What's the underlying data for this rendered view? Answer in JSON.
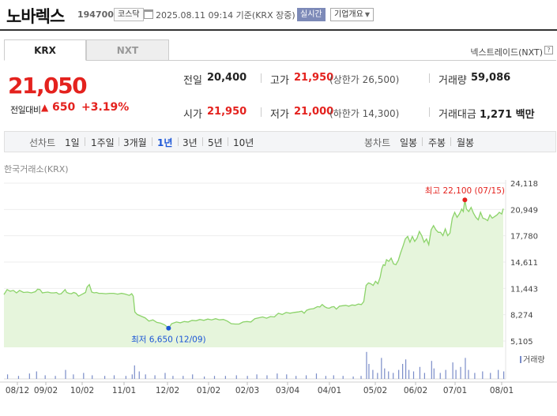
{
  "header": {
    "company_name": "노바렉스",
    "code": "194700",
    "market": "코스닥",
    "as_of": "2025.08.11 09:14 기준(KRX 장중)",
    "realtime_badge": "실시간",
    "company_info": "기업개요",
    "calendar_icon": "calendar-icon",
    "caret_icon": "chevron-down-icon"
  },
  "tabs": [
    {
      "label": "KRX",
      "active": true
    },
    {
      "label": "NXT",
      "active": false
    }
  ],
  "nxt_link": "넥스트레이드(NXT)",
  "help_icon": "question-icon",
  "quote": {
    "price": "21,050",
    "change_label": "전일대비",
    "change_arrow": "▲",
    "change": "650",
    "change_pct": "+3.19%"
  },
  "stats": {
    "prev_close_label": "전일",
    "prev_close": "20,400",
    "high_label": "고가",
    "high": "21,950",
    "upper_limit": "(상한가 26,500)",
    "volume_label": "거래량",
    "volume": "59,086",
    "open_label": "시가",
    "open": "21,950",
    "low_label": "저가",
    "low": "21,000",
    "lower_limit": "(하한가 14,300)",
    "amount_label": "거래대금",
    "amount": "1,271 백만"
  },
  "period_bar": {
    "line_label": "선차트",
    "line_periods": [
      "1일",
      "1주일",
      "3개월",
      "1년",
      "3년",
      "5년",
      "10년"
    ],
    "selected": "1년",
    "candle_label": "봉차트",
    "candle_periods": [
      "일봉",
      "주봉",
      "월봉"
    ]
  },
  "source_label": "한국거래소(KRX)",
  "colors": {
    "up": "#e4221e",
    "accent": "#1c56d6",
    "line": "#8cd36a",
    "fill": "#e6f5dc",
    "volume": "#7a8cc8"
  },
  "chart_data": {
    "type": "area",
    "x_tick_labels": [
      "08/12",
      "09/02",
      "10/02",
      "11/01",
      "12/02",
      "01/02",
      "02/03",
      "03/04",
      "04/01",
      "05/02",
      "06/02",
      "07/01",
      "08/01"
    ],
    "y_tick_labels": [
      "24,118",
      "20,949",
      "17,780",
      "14,611",
      "11,443",
      "8,274",
      "5,105"
    ],
    "ylim": [
      5105,
      24118
    ],
    "max_annotation": {
      "label": "최고",
      "value": "22,100",
      "date": "(07/15)"
    },
    "min_annotation": {
      "label": "최저",
      "value": "6,650",
      "date": "(12/09)"
    },
    "volume_label": "거래량",
    "price_series": [
      [
        0,
        10700
      ],
      [
        4,
        11300
      ],
      [
        8,
        11100
      ],
      [
        12,
        11200
      ],
      [
        16,
        10900
      ],
      [
        20,
        11200
      ],
      [
        25,
        10950
      ],
      [
        30,
        11000
      ],
      [
        35,
        10900
      ],
      [
        40,
        11050
      ],
      [
        43,
        11350
      ],
      [
        46,
        11300
      ],
      [
        49,
        10900
      ],
      [
        52,
        10950
      ],
      [
        56,
        11000
      ],
      [
        60,
        10900
      ],
      [
        64,
        10900
      ],
      [
        67,
        10950
      ],
      [
        70,
        10750
      ],
      [
        73,
        10800
      ],
      [
        76,
        11100
      ],
      [
        78,
        11300
      ],
      [
        80,
        10950
      ],
      [
        83,
        10850
      ],
      [
        86,
        10800
      ],
      [
        89,
        10950
      ],
      [
        92,
        10850
      ],
      [
        95,
        10500
      ],
      [
        98,
        10650
      ],
      [
        101,
        10800
      ],
      [
        104,
        10950
      ],
      [
        106,
        11600
      ],
      [
        109,
        11900
      ],
      [
        112,
        11000
      ],
      [
        115,
        10900
      ],
      [
        118,
        10950
      ],
      [
        121,
        10850
      ],
      [
        125,
        10850
      ],
      [
        130,
        10800
      ],
      [
        135,
        10850
      ],
      [
        140,
        10850
      ],
      [
        145,
        10750
      ],
      [
        150,
        10850
      ],
      [
        155,
        10750
      ],
      [
        160,
        10600
      ],
      [
        163,
        10800
      ],
      [
        165,
        10500
      ],
      [
        167,
        8600
      ],
      [
        170,
        8300
      ],
      [
        175,
        8100
      ],
      [
        180,
        7900
      ],
      [
        185,
        7500
      ],
      [
        190,
        7650
      ],
      [
        195,
        7350
      ],
      [
        200,
        7250
      ],
      [
        205,
        7050
      ],
      [
        210,
        6650
      ],
      [
        214,
        7200
      ],
      [
        220,
        7400
      ],
      [
        225,
        7300
      ],
      [
        230,
        7450
      ],
      [
        235,
        7400
      ],
      [
        240,
        7600
      ],
      [
        245,
        7550
      ],
      [
        250,
        7700
      ],
      [
        255,
        7600
      ],
      [
        260,
        7750
      ],
      [
        265,
        7650
      ],
      [
        270,
        7800
      ],
      [
        275,
        7650
      ],
      [
        280,
        7700
      ],
      [
        285,
        7500
      ],
      [
        290,
        7200
      ],
      [
        295,
        7150
      ],
      [
        300,
        7150
      ],
      [
        305,
        7400
      ],
      [
        310,
        7450
      ],
      [
        315,
        7400
      ],
      [
        320,
        7800
      ],
      [
        325,
        7900
      ],
      [
        330,
        8000
      ],
      [
        335,
        7850
      ],
      [
        340,
        8050
      ],
      [
        345,
        8000
      ],
      [
        350,
        8450
      ],
      [
        355,
        8300
      ],
      [
        360,
        8550
      ],
      [
        365,
        8450
      ],
      [
        370,
        8550
      ],
      [
        375,
        8600
      ],
      [
        380,
        8700
      ],
      [
        383,
        8450
      ],
      [
        386,
        8800
      ],
      [
        390,
        8950
      ],
      [
        395,
        9000
      ],
      [
        400,
        9250
      ],
      [
        403,
        9200
      ],
      [
        406,
        9500
      ],
      [
        409,
        9250
      ],
      [
        412,
        9100
      ],
      [
        415,
        9050
      ],
      [
        418,
        9200
      ],
      [
        421,
        9250
      ],
      [
        424,
        8950
      ],
      [
        428,
        9300
      ],
      [
        432,
        9350
      ],
      [
        436,
        9400
      ],
      [
        440,
        9300
      ],
      [
        444,
        9450
      ],
      [
        448,
        9400
      ],
      [
        452,
        9550
      ],
      [
        456,
        9500
      ],
      [
        459,
        9850
      ],
      [
        462,
        11800
      ],
      [
        465,
        12100
      ],
      [
        468,
        12000
      ],
      [
        471,
        11800
      ],
      [
        474,
        12300
      ],
      [
        477,
        12000
      ],
      [
        480,
        12800
      ],
      [
        482,
        13800
      ],
      [
        484,
        14300
      ],
      [
        486,
        14200
      ],
      [
        488,
        14900
      ],
      [
        491,
        14700
      ],
      [
        494,
        15100
      ],
      [
        497,
        14400
      ],
      [
        500,
        14300
      ],
      [
        503,
        14800
      ],
      [
        506,
        15700
      ],
      [
        509,
        16500
      ],
      [
        512,
        17400
      ],
      [
        515,
        17700
      ],
      [
        518,
        17000
      ],
      [
        521,
        17700
      ],
      [
        524,
        17100
      ],
      [
        527,
        17500
      ],
      [
        530,
        18300
      ],
      [
        533,
        17800
      ],
      [
        536,
        17000
      ],
      [
        539,
        17400
      ],
      [
        542,
        16700
      ],
      [
        545,
        18500
      ],
      [
        548,
        19000
      ],
      [
        551,
        18500
      ],
      [
        554,
        18200
      ],
      [
        557,
        18200
      ],
      [
        560,
        17800
      ],
      [
        563,
        18600
      ],
      [
        566,
        17800
      ],
      [
        569,
        18100
      ],
      [
        572,
        19900
      ],
      [
        575,
        20600
      ],
      [
        578,
        20000
      ],
      [
        581,
        20400
      ],
      [
        584,
        21000
      ],
      [
        586,
        20700
      ],
      [
        588,
        22100
      ],
      [
        590,
        21000
      ],
      [
        593,
        20700
      ],
      [
        596,
        21200
      ],
      [
        599,
        20500
      ],
      [
        602,
        20000
      ],
      [
        605,
        19700
      ],
      [
        608,
        20600
      ],
      [
        611,
        19900
      ],
      [
        614,
        19800
      ],
      [
        617,
        19600
      ],
      [
        620,
        20300
      ],
      [
        623,
        19900
      ],
      [
        626,
        20100
      ],
      [
        629,
        20300
      ],
      [
        632,
        20600
      ],
      [
        635,
        20400
      ],
      [
        637,
        21050
      ]
    ],
    "volume_series": [
      [
        4,
        0.15
      ],
      [
        18,
        0.1
      ],
      [
        32,
        0.18
      ],
      [
        41,
        0.25
      ],
      [
        52,
        0.12
      ],
      [
        65,
        0.1
      ],
      [
        78,
        0.3
      ],
      [
        88,
        0.15
      ],
      [
        101,
        0.2
      ],
      [
        112,
        0.12
      ],
      [
        128,
        0.1
      ],
      [
        140,
        0.12
      ],
      [
        155,
        0.1
      ],
      [
        163,
        0.15
      ],
      [
        166,
        0.45
      ],
      [
        172,
        0.25
      ],
      [
        180,
        0.15
      ],
      [
        192,
        0.12
      ],
      [
        205,
        0.2
      ],
      [
        215,
        0.1
      ],
      [
        228,
        0.1
      ],
      [
        240,
        0.15
      ],
      [
        255,
        0.08
      ],
      [
        268,
        0.1
      ],
      [
        282,
        0.1
      ],
      [
        296,
        0.12
      ],
      [
        310,
        0.1
      ],
      [
        322,
        0.15
      ],
      [
        335,
        0.12
      ],
      [
        348,
        0.18
      ],
      [
        360,
        0.15
      ],
      [
        372,
        0.1
      ],
      [
        385,
        0.12
      ],
      [
        398,
        0.18
      ],
      [
        410,
        0.1
      ],
      [
        420,
        0.12
      ],
      [
        432,
        0.1
      ],
      [
        445,
        0.08
      ],
      [
        455,
        0.1
      ],
      [
        462,
        0.9
      ],
      [
        465,
        0.5
      ],
      [
        470,
        0.3
      ],
      [
        476,
        0.2
      ],
      [
        481,
        0.7
      ],
      [
        485,
        0.35
      ],
      [
        490,
        0.25
      ],
      [
        496,
        0.2
      ],
      [
        503,
        0.3
      ],
      [
        508,
        0.5
      ],
      [
        512,
        0.65
      ],
      [
        516,
        0.3
      ],
      [
        522,
        0.25
      ],
      [
        530,
        0.4
      ],
      [
        536,
        0.2
      ],
      [
        545,
        0.6
      ],
      [
        548,
        0.35
      ],
      [
        556,
        0.2
      ],
      [
        563,
        0.3
      ],
      [
        572,
        0.55
      ],
      [
        576,
        0.3
      ],
      [
        582,
        0.4
      ],
      [
        588,
        0.7
      ],
      [
        592,
        0.3
      ],
      [
        600,
        0.2
      ],
      [
        610,
        0.25
      ],
      [
        620,
        0.2
      ],
      [
        630,
        0.3
      ],
      [
        637,
        0.25
      ]
    ]
  }
}
